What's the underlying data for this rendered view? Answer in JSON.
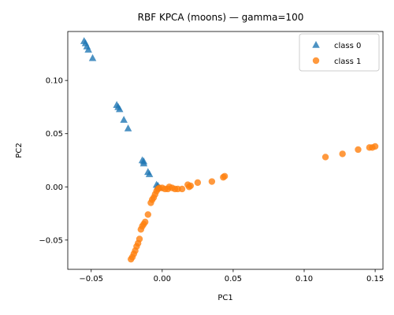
{
  "chart_data": {
    "type": "scatter",
    "title": "RBF KPCA (moons) — gamma=100",
    "xlabel": "PC1",
    "ylabel": "PC2",
    "xlim": [
      -0.0665,
      0.1555
    ],
    "ylim": [
      -0.0775,
      0.146
    ],
    "xticks": [
      -0.05,
      0.0,
      0.05,
      0.1,
      0.15
    ],
    "xtick_labels": [
      "−0.05",
      "0.00",
      "0.05",
      "0.10",
      "0.15"
    ],
    "yticks": [
      -0.05,
      0.0,
      0.05,
      0.1
    ],
    "ytick_labels": [
      "−0.05",
      "0.00",
      "0.05",
      "0.10"
    ],
    "grid": false,
    "legend_position": "top-right",
    "colors": {
      "class_0": "#1f77b4",
      "class_1": "#ff7f0e"
    },
    "series": [
      {
        "name": "class 0",
        "marker": "triangle",
        "points": [
          [
            -0.055,
            0.137
          ],
          [
            -0.054,
            0.135
          ],
          [
            -0.053,
            0.132
          ],
          [
            -0.052,
            0.129
          ],
          [
            -0.049,
            0.121
          ],
          [
            -0.032,
            0.077
          ],
          [
            -0.031,
            0.075
          ],
          [
            -0.03,
            0.073
          ],
          [
            -0.027,
            0.063
          ],
          [
            -0.024,
            0.055
          ],
          [
            -0.014,
            0.025
          ],
          [
            -0.013,
            0.024
          ],
          [
            -0.013,
            0.022
          ],
          [
            -0.01,
            0.014
          ],
          [
            -0.009,
            0.012
          ],
          [
            -0.004,
            0.002
          ],
          [
            -0.003,
            0.0
          ],
          [
            -0.003,
            0.001
          ],
          [
            -0.002,
            -0.001
          ]
        ]
      },
      {
        "name": "class 1",
        "marker": "circle",
        "points": [
          [
            -0.022,
            -0.068
          ],
          [
            -0.021,
            -0.066
          ],
          [
            -0.02,
            -0.063
          ],
          [
            -0.019,
            -0.06
          ],
          [
            -0.018,
            -0.056
          ],
          [
            -0.017,
            -0.053
          ],
          [
            -0.016,
            -0.049
          ],
          [
            -0.015,
            -0.04
          ],
          [
            -0.014,
            -0.037
          ],
          [
            -0.013,
            -0.035
          ],
          [
            -0.012,
            -0.033
          ],
          [
            -0.01,
            -0.026
          ],
          [
            -0.008,
            -0.015
          ],
          [
            -0.007,
            -0.012
          ],
          [
            -0.006,
            -0.01
          ],
          [
            -0.005,
            -0.007
          ],
          [
            -0.004,
            -0.004
          ],
          [
            -0.003,
            -0.002
          ],
          [
            -0.002,
            -0.001
          ],
          [
            0.0,
            -0.001
          ],
          [
            0.002,
            -0.002
          ],
          [
            0.004,
            -0.002
          ],
          [
            0.005,
            0.0
          ],
          [
            0.007,
            -0.001
          ],
          [
            0.009,
            -0.002
          ],
          [
            0.011,
            -0.002
          ],
          [
            0.014,
            -0.002
          ],
          [
            0.018,
            0.002
          ],
          [
            0.019,
            0.0
          ],
          [
            0.02,
            0.001
          ],
          [
            0.025,
            0.004
          ],
          [
            0.035,
            0.005
          ],
          [
            0.043,
            0.009
          ],
          [
            0.044,
            0.01
          ],
          [
            0.115,
            0.028
          ],
          [
            0.127,
            0.031
          ],
          [
            0.138,
            0.035
          ],
          [
            0.146,
            0.037
          ],
          [
            0.148,
            0.037
          ],
          [
            0.15,
            0.038
          ]
        ]
      }
    ]
  }
}
